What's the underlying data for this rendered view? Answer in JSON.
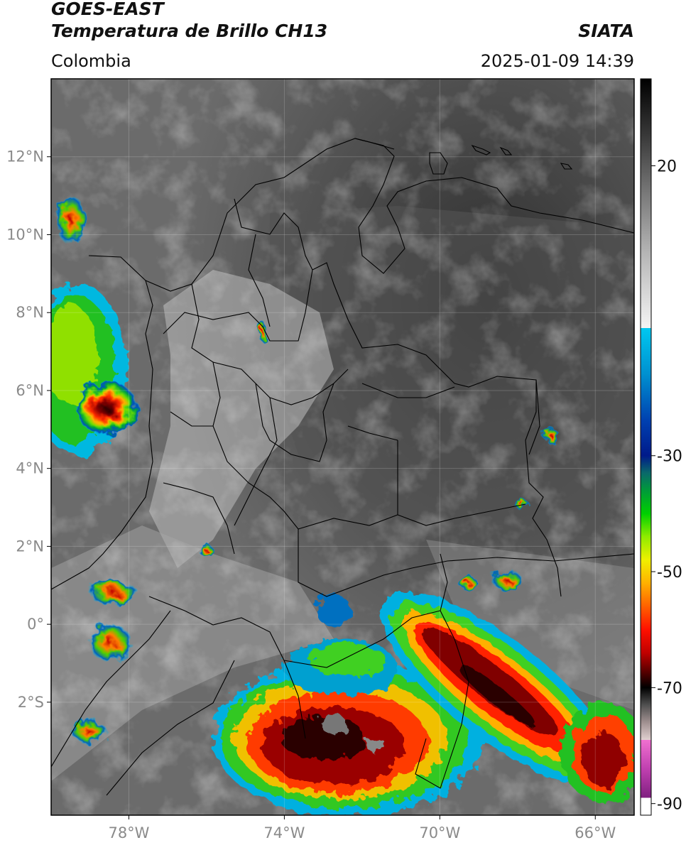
{
  "header": {
    "satellite": "GOES-EAST",
    "product": "Temperatura de Brillo CH13",
    "region": "Colombia",
    "source": "SIATA",
    "datetime": "2025-01-09 14:39"
  },
  "map": {
    "lon_range": [
      -80.0,
      -65.0
    ],
    "lat_range": [
      -4.9,
      14.0
    ],
    "lon_ticks": [
      {
        "value": -78,
        "label": "78°W"
      },
      {
        "value": -74,
        "label": "74°W"
      },
      {
        "value": -70,
        "label": "70°W"
      },
      {
        "value": -66,
        "label": "66°W"
      }
    ],
    "lat_ticks": [
      {
        "value": 12,
        "label": "12°N"
      },
      {
        "value": 10,
        "label": "10°N"
      },
      {
        "value": 8,
        "label": "8°N"
      },
      {
        "value": 6,
        "label": "6°N"
      },
      {
        "value": 4,
        "label": "4°N"
      },
      {
        "value": 2,
        "label": "2°N"
      },
      {
        "value": 0,
        "label": "0°"
      },
      {
        "value": -2,
        "label": "2°S"
      }
    ],
    "gridlines": true
  },
  "colorbar": {
    "range": [
      -92,
      35
    ],
    "ticks": [
      {
        "value": 20,
        "label": "20"
      },
      {
        "value": -30,
        "label": "-30"
      },
      {
        "value": -50,
        "label": "-50"
      },
      {
        "value": -70,
        "label": "-70"
      },
      {
        "value": -90,
        "label": "-90"
      }
    ],
    "stops": [
      {
        "v": 35,
        "color": "#000000"
      },
      {
        "v": 25,
        "color": "#3a3a3a"
      },
      {
        "v": 15,
        "color": "#7a7a7a"
      },
      {
        "v": 5,
        "color": "#b5b5b5"
      },
      {
        "v": -8,
        "color": "#f4f4f4"
      },
      {
        "v": -8.01,
        "color": "#00c8f0"
      },
      {
        "v": -16,
        "color": "#0090d0"
      },
      {
        "v": -24,
        "color": "#0040b0"
      },
      {
        "v": -30,
        "color": "#001a8a"
      },
      {
        "v": -33,
        "color": "#0a6a6a"
      },
      {
        "v": -36,
        "color": "#009a3a"
      },
      {
        "v": -40,
        "color": "#00d000"
      },
      {
        "v": -44,
        "color": "#90ec00"
      },
      {
        "v": -48,
        "color": "#f0f000"
      },
      {
        "v": -52,
        "color": "#ffb000"
      },
      {
        "v": -56,
        "color": "#ff6000"
      },
      {
        "v": -60,
        "color": "#ff1000"
      },
      {
        "v": -64,
        "color": "#c00000"
      },
      {
        "v": -67,
        "color": "#600000"
      },
      {
        "v": -70,
        "color": "#000000"
      },
      {
        "v": -73,
        "color": "#505050"
      },
      {
        "v": -76,
        "color": "#a09090"
      },
      {
        "v": -79,
        "color": "#e0d0d0"
      },
      {
        "v": -79.01,
        "color": "#f070d0"
      },
      {
        "v": -84,
        "color": "#c040b0"
      },
      {
        "v": -89,
        "color": "#802080"
      },
      {
        "v": -89.01,
        "color": "#ffffff"
      },
      {
        "v": -92,
        "color": "#ffffff"
      }
    ]
  }
}
